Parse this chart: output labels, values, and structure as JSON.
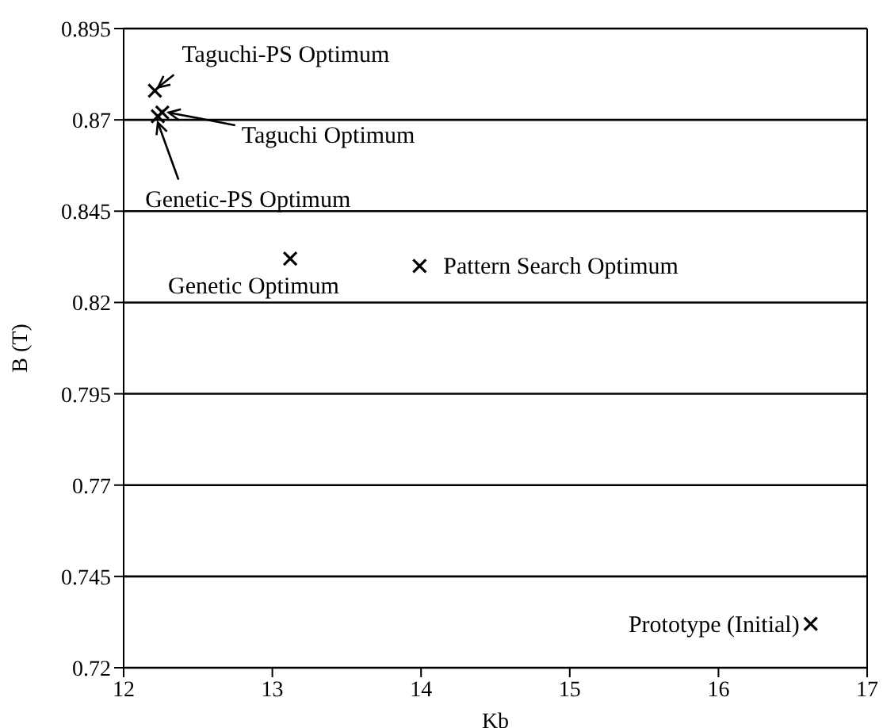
{
  "chart_data": {
    "type": "scatter",
    "xlabel": "Kb",
    "ylabel": "B (T)",
    "x": [
      12.21,
      12.26,
      12.23,
      13.12,
      13.99,
      16.62
    ],
    "series": [
      {
        "color": "#000000",
        "values": [
          0.878,
          0.872,
          0.871,
          0.832,
          0.83,
          0.732
        ]
      }
    ],
    "xlim": [
      12,
      17
    ],
    "xticks": [
      12,
      13,
      14,
      15,
      16,
      17
    ],
    "ylim": [
      0.72,
      0.895
    ],
    "yticks": [
      0.72,
      0.745,
      0.77,
      0.795,
      0.82,
      0.845,
      0.87,
      0.895
    ],
    "grid": "y",
    "marker": "cross",
    "legend": false,
    "annotations": [
      {
        "text": "Taguchi-PS Optimum",
        "x": 12.21,
        "y": 0.878
      },
      {
        "text": "Taguchi Optimum",
        "x": 12.26,
        "y": 0.872
      },
      {
        "text": "Genetic-PS Optimum",
        "x": 12.23,
        "y": 0.871
      },
      {
        "text": "Genetic Optimum",
        "x": 13.12,
        "y": 0.832
      },
      {
        "text": "Pattern Search Optimum",
        "x": 13.99,
        "y": 0.83
      },
      {
        "text": "Prototype (Initial)",
        "x": 16.62,
        "y": 0.732
      }
    ]
  }
}
